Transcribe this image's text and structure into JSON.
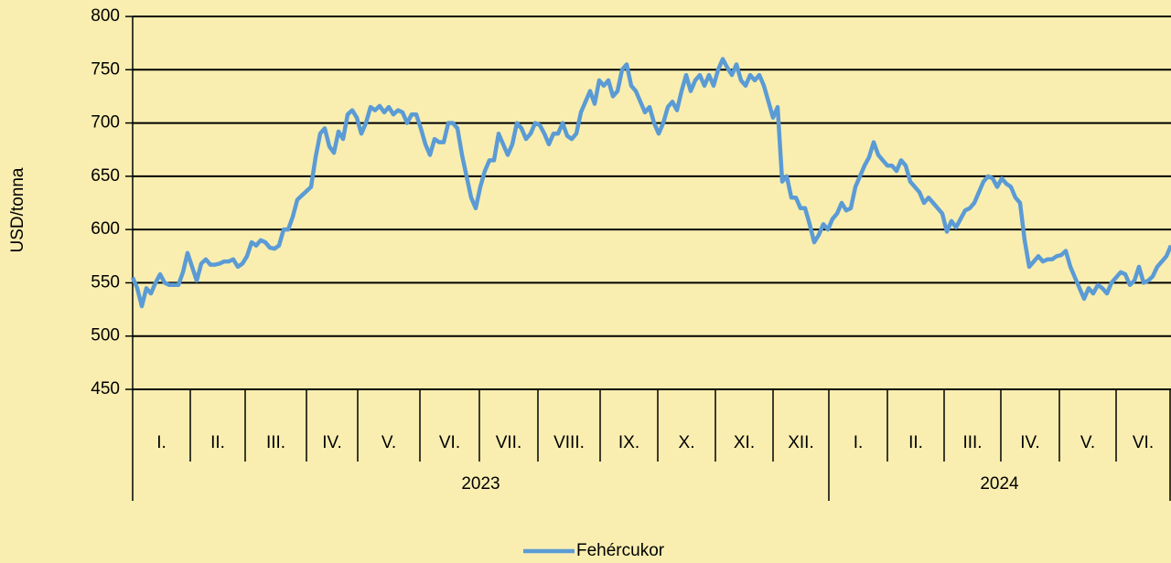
{
  "chart_data": {
    "type": "line",
    "y_label": "USD/tonna",
    "groups": [
      {
        "label": "2023",
        "categories": [
          "I.",
          "II.",
          "III.",
          "IV.",
          "V.",
          "VI.",
          "VII.",
          "VIII.",
          "IX.",
          "X.",
          "XI.",
          "XII."
        ]
      },
      {
        "label": "2024",
        "categories": [
          "I.",
          "II.",
          "III.",
          "IV.",
          "V.",
          "VI."
        ]
      }
    ],
    "ylim": [
      450,
      800
    ],
    "yticks": [
      450,
      500,
      550,
      600,
      650,
      700,
      750,
      800
    ],
    "grid": true,
    "legend": "bottom",
    "series": [
      {
        "name": "Fehércukor",
        "color": "#5b9bd5",
        "values": [
          555,
          545,
          528,
          545,
          540,
          550,
          558,
          550,
          548,
          548,
          548,
          560,
          578,
          565,
          552,
          568,
          572,
          567,
          567,
          568,
          570,
          570,
          572,
          565,
          568,
          575,
          588,
          585,
          590,
          588,
          583,
          582,
          585,
          600,
          600,
          612,
          628,
          632,
          636,
          640,
          668,
          690,
          695,
          678,
          672,
          692,
          685,
          708,
          712,
          705,
          690,
          700,
          715,
          712,
          716,
          710,
          715,
          708,
          712,
          710,
          700,
          708,
          708,
          695,
          680,
          670,
          685,
          682,
          682,
          700,
          700,
          695,
          670,
          650,
          630,
          620,
          640,
          655,
          665,
          665,
          690,
          680,
          670,
          680,
          700,
          695,
          685,
          690,
          700,
          698,
          690,
          680,
          690,
          690,
          700,
          688,
          685,
          690,
          710,
          720,
          730,
          718,
          740,
          735,
          740,
          725,
          730,
          750,
          755,
          735,
          730,
          720,
          710,
          715,
          700,
          690,
          700,
          715,
          720,
          712,
          730,
          745,
          730,
          740,
          745,
          735,
          745,
          735,
          750,
          760,
          752,
          745,
          755,
          740,
          735,
          745,
          740,
          745,
          735,
          720,
          705,
          715,
          645,
          650,
          630,
          630,
          620,
          620,
          605,
          588,
          595,
          605,
          600,
          610,
          615,
          625,
          618,
          620,
          640,
          650,
          660,
          668,
          682,
          670,
          665,
          660,
          660,
          655,
          665,
          660,
          645,
          640,
          635,
          625,
          630,
          625,
          620,
          615,
          598,
          608,
          602,
          610,
          618,
          620,
          625,
          635,
          645,
          650,
          648,
          640,
          648,
          643,
          640,
          630,
          625,
          590,
          565,
          570,
          575,
          570,
          572,
          572,
          575,
          576,
          580,
          565,
          555,
          545,
          535,
          545,
          540,
          548,
          545,
          540,
          550,
          555,
          560,
          558,
          548,
          552,
          565,
          550,
          552,
          556,
          565,
          570,
          575,
          585
        ]
      }
    ]
  }
}
